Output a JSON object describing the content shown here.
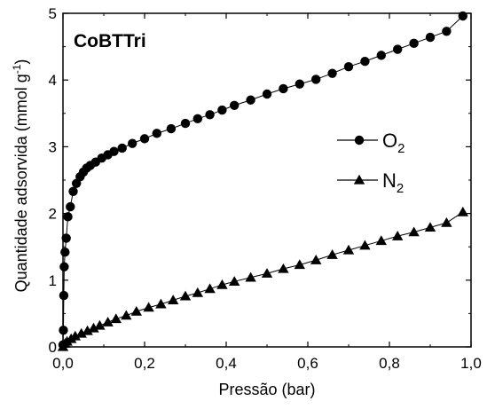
{
  "chart_data": {
    "type": "scatter",
    "annotation": "CoBTTri",
    "xlabel": "Pressão (bar)",
    "ylabel": "Quantidade adsorvida (mmol g",
    "ylabel_sup": "-1",
    "ylabel_suffix": ")",
    "xlim": [
      0,
      1.0
    ],
    "ylim": [
      0,
      5
    ],
    "x_ticks": [
      0,
      0.2,
      0.4,
      0.6,
      0.8,
      1.0
    ],
    "x_tick_labels": [
      "0,0",
      "0,2",
      "0,4",
      "0,6",
      "0,8",
      "1,0"
    ],
    "y_ticks": [
      0,
      1,
      2,
      3,
      4,
      5
    ],
    "y_tick_labels": [
      "0",
      "1",
      "2",
      "3",
      "4",
      "5"
    ],
    "legend_placement": "right-center",
    "series": [
      {
        "name": "O",
        "name_sub": "2",
        "marker": "circle",
        "color": "#000000",
        "x": [
          0.0,
          0.001,
          0.002,
          0.003,
          0.005,
          0.008,
          0.012,
          0.018,
          0.025,
          0.033,
          0.042,
          0.05,
          0.058,
          0.067,
          0.08,
          0.095,
          0.11,
          0.125,
          0.145,
          0.17,
          0.2,
          0.23,
          0.265,
          0.3,
          0.33,
          0.36,
          0.39,
          0.42,
          0.46,
          0.5,
          0.54,
          0.58,
          0.62,
          0.66,
          0.7,
          0.74,
          0.78,
          0.82,
          0.86,
          0.9,
          0.94,
          0.98
        ],
        "y": [
          0.03,
          0.25,
          0.77,
          1.2,
          1.42,
          1.63,
          1.95,
          2.1,
          2.33,
          2.45,
          2.55,
          2.62,
          2.68,
          2.72,
          2.77,
          2.83,
          2.88,
          2.93,
          2.98,
          3.05,
          3.12,
          3.2,
          3.27,
          3.35,
          3.42,
          3.48,
          3.55,
          3.62,
          3.7,
          3.79,
          3.87,
          3.94,
          4.01,
          4.1,
          4.2,
          4.28,
          4.37,
          4.46,
          4.55,
          4.64,
          4.73,
          4.96
        ]
      },
      {
        "name": "N",
        "name_sub": "2",
        "marker": "triangle",
        "color": "#000000",
        "x": [
          0.0,
          0.005,
          0.01,
          0.02,
          0.03,
          0.045,
          0.06,
          0.075,
          0.09,
          0.11,
          0.13,
          0.155,
          0.18,
          0.21,
          0.24,
          0.27,
          0.3,
          0.33,
          0.36,
          0.39,
          0.42,
          0.46,
          0.5,
          0.54,
          0.58,
          0.62,
          0.66,
          0.7,
          0.74,
          0.78,
          0.82,
          0.86,
          0.9,
          0.94,
          0.98
        ],
        "y": [
          0.0,
          0.05,
          0.08,
          0.12,
          0.16,
          0.2,
          0.24,
          0.28,
          0.32,
          0.37,
          0.42,
          0.47,
          0.53,
          0.59,
          0.64,
          0.7,
          0.76,
          0.81,
          0.87,
          0.93,
          0.98,
          1.04,
          1.1,
          1.17,
          1.23,
          1.3,
          1.38,
          1.45,
          1.52,
          1.59,
          1.66,
          1.72,
          1.79,
          1.86,
          2.02
        ]
      }
    ]
  }
}
